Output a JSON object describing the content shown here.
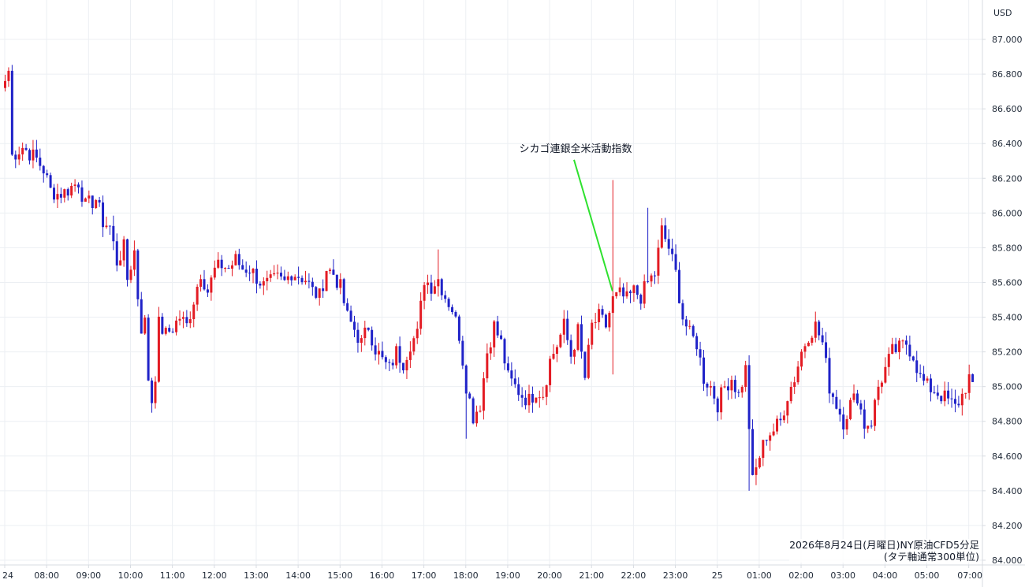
{
  "chart_data": {
    "type": "candlestick",
    "currency": "USD",
    "ylim": [
      84.0,
      87.1
    ],
    "y_ticks": [
      "84.000",
      "84.200",
      "84.400",
      "84.600",
      "84.800",
      "85.000",
      "85.200",
      "85.400",
      "85.600",
      "85.800",
      "86.000",
      "86.200",
      "86.400",
      "86.600",
      "86.800",
      "87.000"
    ],
    "x_ticks": [
      {
        "label": "24",
        "bar": 0
      },
      {
        "label": "08:00",
        "bar": 12
      },
      {
        "label": "09:00",
        "bar": 24
      },
      {
        "label": "10:00",
        "bar": 36
      },
      {
        "label": "11:00",
        "bar": 48
      },
      {
        "label": "12:00",
        "bar": 60
      },
      {
        "label": "13:00",
        "bar": 72
      },
      {
        "label": "14:00",
        "bar": 84
      },
      {
        "label": "15:00",
        "bar": 96
      },
      {
        "label": "16:00",
        "bar": 108
      },
      {
        "label": "17:00",
        "bar": 120
      },
      {
        "label": "18:00",
        "bar": 132
      },
      {
        "label": "19:00",
        "bar": 144
      },
      {
        "label": "20:00",
        "bar": 156
      },
      {
        "label": "21:00",
        "bar": 168
      },
      {
        "label": "22:00",
        "bar": 180
      },
      {
        "label": "23:00",
        "bar": 192
      },
      {
        "label": "25",
        "bar": 204
      },
      {
        "label": "01:00",
        "bar": 216
      },
      {
        "label": "02:00",
        "bar": 228
      },
      {
        "label": "03:00",
        "bar": 240
      },
      {
        "label": "04:00",
        "bar": 252
      },
      {
        "label": "05:00",
        "bar": 264
      },
      {
        "label": "07:00",
        "bar": 276
      }
    ],
    "close_path": [
      [
        0,
        86.76
      ],
      [
        1,
        86.82
      ],
      [
        2,
        86.33
      ],
      [
        5,
        86.38
      ],
      [
        9,
        86.31
      ],
      [
        11,
        86.25
      ],
      [
        13,
        86.13
      ],
      [
        15,
        86.11
      ],
      [
        17,
        86.12
      ],
      [
        19,
        86.15
      ],
      [
        21,
        86.18
      ],
      [
        23,
        86.04
      ],
      [
        26,
        86.08
      ],
      [
        28,
        85.95
      ],
      [
        30,
        85.92
      ],
      [
        32,
        85.72
      ],
      [
        34,
        85.8
      ],
      [
        35,
        85.62
      ],
      [
        37,
        85.78
      ],
      [
        38,
        85.52
      ],
      [
        39,
        85.34
      ],
      [
        40,
        85.37
      ],
      [
        41,
        85.05
      ],
      [
        42,
        84.92
      ],
      [
        43,
        85.07
      ],
      [
        44,
        85.36
      ],
      [
        46,
        85.3
      ],
      [
        48,
        85.34
      ],
      [
        50,
        85.4
      ],
      [
        52,
        85.35
      ],
      [
        54,
        85.5
      ],
      [
        56,
        85.66
      ],
      [
        58,
        85.55
      ],
      [
        60,
        85.67
      ],
      [
        62,
        85.7
      ],
      [
        64,
        85.68
      ],
      [
        66,
        85.73
      ],
      [
        68,
        85.68
      ],
      [
        70,
        85.68
      ],
      [
        72,
        85.63
      ],
      [
        74,
        85.58
      ],
      [
        76,
        85.6
      ],
      [
        78,
        85.62
      ],
      [
        80,
        85.6
      ],
      [
        82,
        85.66
      ],
      [
        84,
        85.64
      ],
      [
        86,
        85.62
      ],
      [
        88,
        85.55
      ],
      [
        90,
        85.52
      ],
      [
        92,
        85.68
      ],
      [
        94,
        85.65
      ],
      [
        96,
        85.57
      ],
      [
        98,
        85.4
      ],
      [
        100,
        85.33
      ],
      [
        102,
        85.25
      ],
      [
        104,
        85.35
      ],
      [
        106,
        85.22
      ],
      [
        108,
        85.15
      ],
      [
        110,
        85.1
      ],
      [
        112,
        85.2
      ],
      [
        114,
        85.14
      ],
      [
        116,
        85.25
      ],
      [
        118,
        85.3
      ],
      [
        120,
        85.62
      ],
      [
        122,
        85.58
      ],
      [
        124,
        85.62
      ],
      [
        126,
        85.52
      ],
      [
        128,
        85.45
      ],
      [
        130,
        85.3
      ],
      [
        132,
        85.01
      ],
      [
        134,
        84.83
      ],
      [
        136,
        84.9
      ],
      [
        138,
        85.2
      ],
      [
        140,
        85.35
      ],
      [
        142,
        85.25
      ],
      [
        144,
        85.05
      ],
      [
        146,
        85.0
      ],
      [
        148,
        84.95
      ],
      [
        150,
        84.92
      ],
      [
        152,
        84.98
      ],
      [
        154,
        84.96
      ],
      [
        156,
        85.15
      ],
      [
        158,
        85.24
      ],
      [
        160,
        85.35
      ],
      [
        162,
        85.18
      ],
      [
        164,
        85.32
      ],
      [
        166,
        85.05
      ],
      [
        168,
        85.35
      ],
      [
        170,
        85.4
      ],
      [
        172,
        85.35
      ],
      [
        174,
        85.5
      ],
      [
        176,
        85.53
      ],
      [
        178,
        85.5
      ],
      [
        180,
        85.55
      ],
      [
        182,
        85.52
      ],
      [
        184,
        85.6
      ],
      [
        186,
        85.65
      ],
      [
        188,
        85.9
      ],
      [
        190,
        85.8
      ],
      [
        192,
        85.65
      ],
      [
        194,
        85.4
      ],
      [
        196,
        85.3
      ],
      [
        198,
        85.25
      ],
      [
        200,
        85.05
      ],
      [
        202,
        85.0
      ],
      [
        204,
        84.9
      ],
      [
        206,
        85.0
      ],
      [
        208,
        85.05
      ],
      [
        210,
        84.95
      ],
      [
        212,
        85.1
      ],
      [
        214,
        84.45
      ],
      [
        216,
        84.6
      ],
      [
        218,
        84.72
      ],
      [
        220,
        84.75
      ],
      [
        222,
        84.8
      ],
      [
        224,
        84.95
      ],
      [
        226,
        85.05
      ],
      [
        228,
        85.2
      ],
      [
        230,
        85.3
      ],
      [
        232,
        85.35
      ],
      [
        234,
        85.25
      ],
      [
        236,
        85.0
      ],
      [
        238,
        84.9
      ],
      [
        240,
        84.8
      ],
      [
        242,
        84.9
      ],
      [
        244,
        84.95
      ],
      [
        246,
        84.78
      ],
      [
        248,
        84.8
      ],
      [
        250,
        85.0
      ],
      [
        252,
        85.1
      ],
      [
        254,
        85.2
      ],
      [
        256,
        85.22
      ],
      [
        258,
        85.25
      ],
      [
        260,
        85.18
      ],
      [
        262,
        85.05
      ],
      [
        264,
        85.0
      ],
      [
        266,
        84.98
      ],
      [
        268,
        84.95
      ],
      [
        270,
        84.92
      ],
      [
        272,
        84.88
      ],
      [
        274,
        84.95
      ],
      [
        276,
        85.05
      ],
      [
        277,
        84.98
      ]
    ],
    "wick_overrides": [
      {
        "bar": 174,
        "high": 86.19,
        "low": 85.07
      },
      {
        "bar": 184,
        "high": 86.03
      },
      {
        "bar": 213,
        "low": 84.4
      },
      {
        "bar": 42,
        "low": 84.85
      },
      {
        "bar": 124,
        "high": 85.79
      },
      {
        "bar": 132,
        "low": 84.7
      }
    ],
    "annotations": [
      {
        "text": "シカゴ連銀全米活動指数",
        "bar": 174,
        "value": 85.55,
        "label_value": 86.37
      }
    ],
    "caption_line1": "2026年8月24日(月曜日)NY原油CFD5分足",
    "caption_line2": "(タテ軸通常300単位)",
    "colors": {
      "up": "#e31b23",
      "down": "#1f22c8",
      "annotation_line": "#2ee12e"
    }
  }
}
